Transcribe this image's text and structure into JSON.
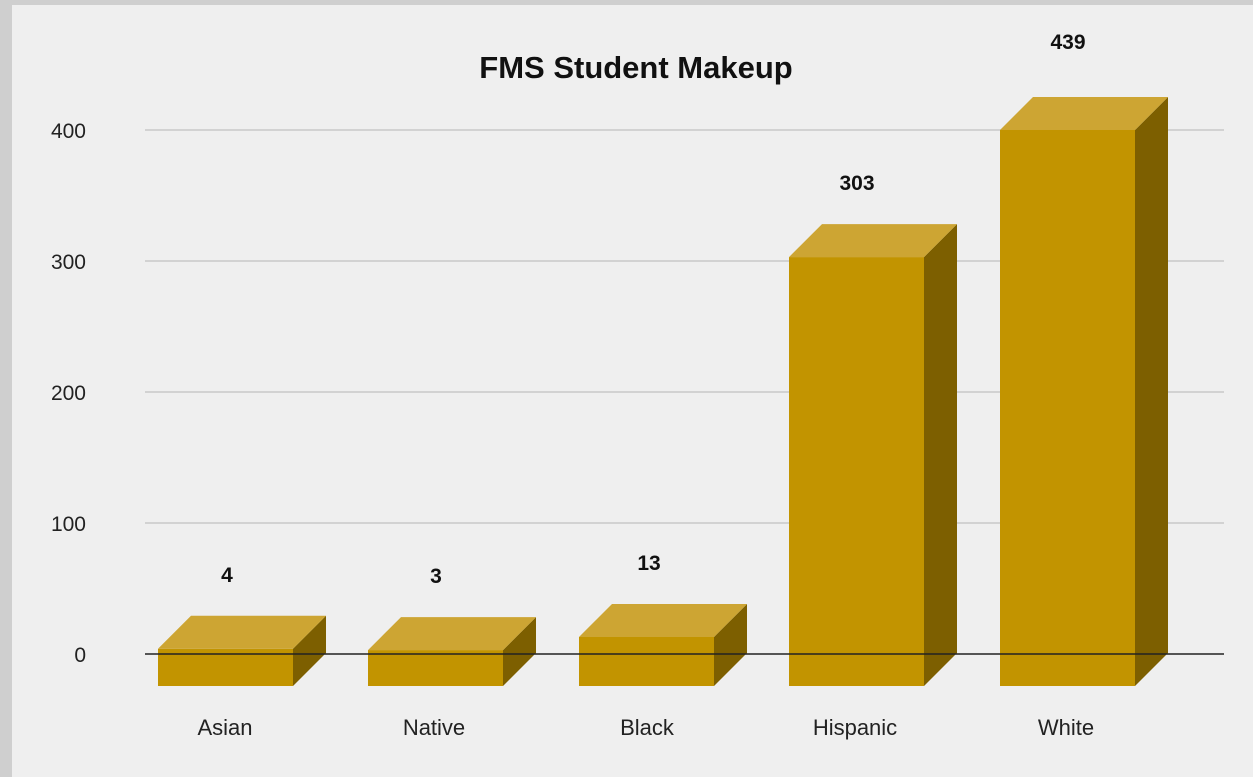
{
  "chart_data": {
    "type": "bar",
    "title": "FMS Student Makeup",
    "xlabel": "",
    "ylabel": "",
    "categories": [
      "Asian",
      "Native",
      "Black",
      "Hispanic",
      "White"
    ],
    "values": [
      4,
      3,
      13,
      303,
      439
    ],
    "data_labels": [
      "4",
      "3",
      "13",
      "303",
      "439"
    ],
    "ylim": [
      0,
      400
    ],
    "yticks": [
      0,
      100,
      200,
      300,
      400
    ],
    "ytick_labels": [
      "0",
      "100",
      "200",
      "300",
      "400"
    ],
    "grid": true,
    "legend": "none",
    "style": "3d",
    "colors": {
      "front": "#c29400",
      "top": "#cda533",
      "side": "#7d5f00",
      "grid": "#c8c8c8",
      "axis": "#222222",
      "background": "#efefef"
    }
  }
}
